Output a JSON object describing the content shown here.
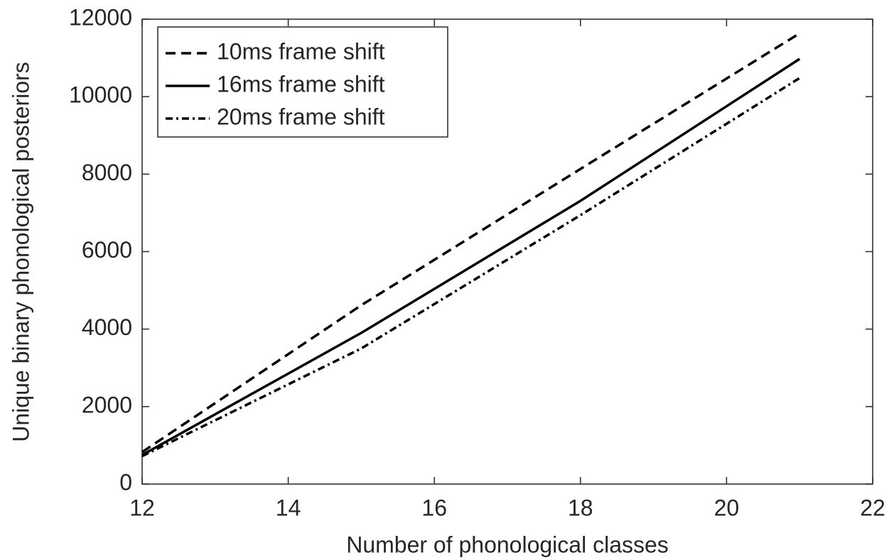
{
  "chart_data": {
    "type": "line",
    "x_label": "Number of phonological classes",
    "y_label": "Unique binary phonological posteriors",
    "x": [
      12,
      15,
      18,
      21
    ],
    "series": [
      {
        "name": "10ms frame shift",
        "color": "#000000",
        "linestyle": "dashed",
        "values": [
          825,
          4617,
          8134,
          11634
        ]
      },
      {
        "name": "16ms frame shift",
        "color": "#000000",
        "linestyle": "solid",
        "values": [
          750,
          3902,
          7310,
          10974
        ]
      },
      {
        "name": "20ms frame shift",
        "color": "#000000",
        "linestyle": "dashdot",
        "values": [
          720,
          3500,
          6940,
          10480
        ]
      }
    ],
    "xlim": [
      12,
      22
    ],
    "xticks": [
      12,
      14,
      16,
      18,
      20,
      22
    ],
    "ylim": [
      0,
      12000
    ],
    "yticks": [
      0,
      2000,
      4000,
      6000,
      8000,
      10000,
      12000
    ],
    "grid": false,
    "legend": "upper left"
  }
}
